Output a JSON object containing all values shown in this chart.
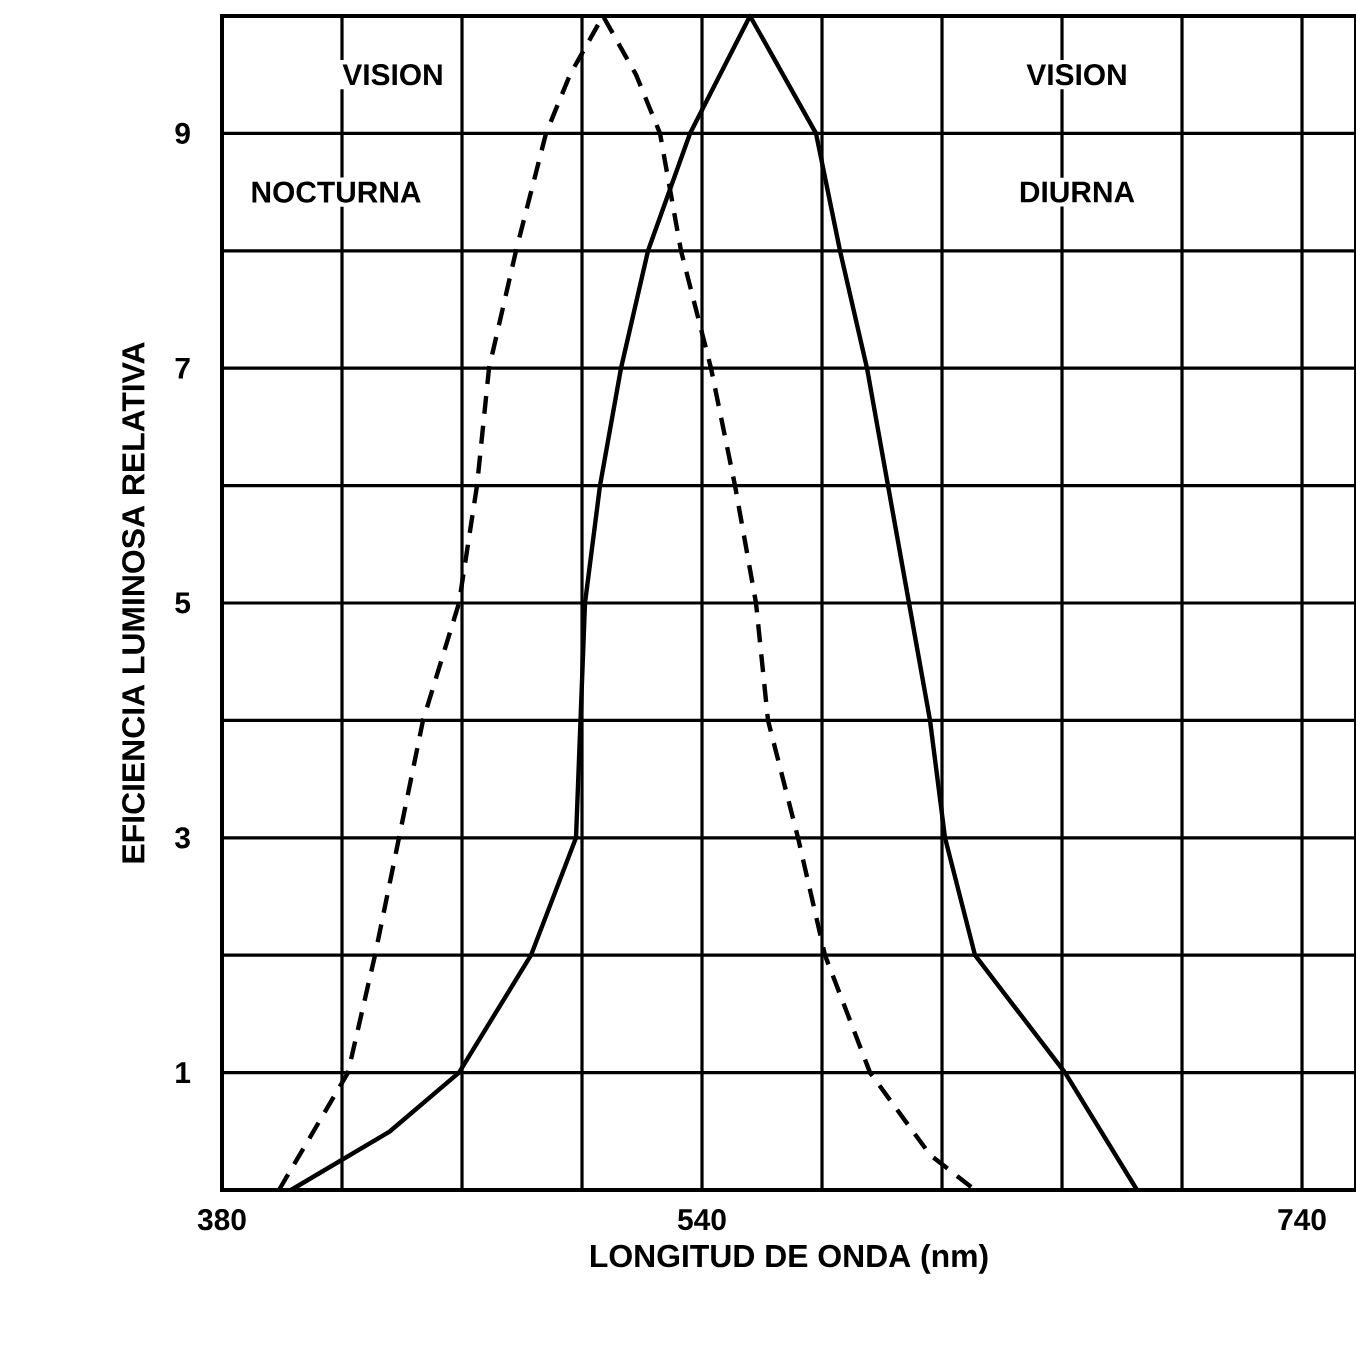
{
  "chart_data": {
    "type": "line",
    "xlabel": "LONGITUD DE ONDA (nm)",
    "ylabel": "EFICIENCIA LUMINOSA RELATIVA",
    "annotations": [
      "VISION",
      "NOCTURNA",
      "VISION",
      "DIURNA"
    ],
    "xlim": [
      380,
      758
    ],
    "xticks": [
      380,
      {
        "value": 420,
        "label": null
      },
      {
        "value": 460,
        "label": null
      },
      {
        "value": 500,
        "label": null
      },
      540,
      {
        "value": 580,
        "label": null
      },
      {
        "value": 620,
        "label": null
      },
      {
        "value": 660,
        "label": null
      },
      {
        "value": 700,
        "label": null
      },
      740
    ],
    "ylim": [
      0,
      10
    ],
    "yticks": [
      {
        "value": 0,
        "label": null
      },
      1,
      {
        "value": 2,
        "label": null
      },
      3,
      {
        "value": 4,
        "label": null
      },
      5,
      {
        "value": 6,
        "label": null
      },
      7,
      {
        "value": 8,
        "label": null
      },
      9,
      {
        "value": 10,
        "label": null
      }
    ],
    "grid": true,
    "marker": "none",
    "series": [
      {
        "color": "#000000",
        "line_style": "dashed",
        "x": [
          399,
          422,
          431,
          439,
          447,
          459,
          465,
          469,
          478,
          488,
          496,
          507,
          518,
          526,
          533,
          543,
          551,
          558,
          562,
          572,
          581,
          596,
          616,
          631
        ],
        "values": [
          0,
          1,
          2,
          3,
          4,
          5,
          6,
          7,
          8,
          9,
          9.5,
          10,
          9.5,
          9,
          8,
          7,
          6,
          5,
          4,
          3,
          2,
          1,
          0.3,
          0
        ]
      },
      {
        "color": "#000000",
        "line_style": "solid",
        "x": [
          403,
          436,
          459,
          483,
          498,
          501,
          506,
          513,
          522,
          536,
          556,
          578,
          586,
          595,
          602,
          609,
          616,
          621,
          631,
          661,
          685
        ],
        "values": [
          0,
          0.5,
          1,
          2,
          3,
          5,
          6,
          7,
          8,
          9,
          10,
          9,
          8,
          7,
          6,
          5,
          4,
          3,
          2,
          1,
          0
        ]
      }
    ]
  }
}
